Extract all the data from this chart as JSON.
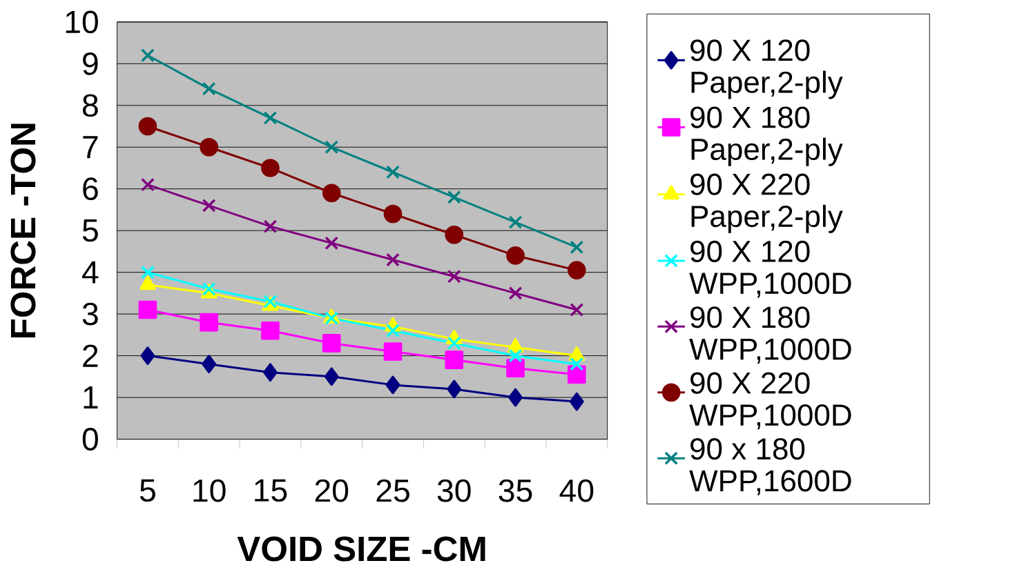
{
  "chart_data": {
    "type": "line",
    "xlabel": "VOID SIZE -CM",
    "ylabel": "FORCE -TON",
    "categories": [
      "5",
      "10",
      "15",
      "20",
      "25",
      "30",
      "35",
      "40"
    ],
    "ylim": [
      0,
      10
    ],
    "yticks": [
      0,
      1,
      2,
      3,
      4,
      5,
      6,
      7,
      8,
      9,
      10
    ],
    "grid": "y",
    "legend": "right",
    "series": [
      {
        "name": "90 X 120 Paper,2-ply",
        "color": "#000080",
        "marker": "diamond",
        "values": [
          2.0,
          1.8,
          1.6,
          1.5,
          1.3,
          1.2,
          1.0,
          0.9
        ]
      },
      {
        "name": "90 X 180 Paper,2-ply",
        "color": "#ff00ff",
        "marker": "square",
        "values": [
          3.1,
          2.8,
          2.6,
          2.3,
          2.1,
          1.9,
          1.7,
          1.55
        ]
      },
      {
        "name": "90 X 220 Paper,2-ply",
        "color": "#ffff00",
        "marker": "triangle",
        "values": [
          3.7,
          3.5,
          3.2,
          2.9,
          2.7,
          2.4,
          2.2,
          2.0
        ]
      },
      {
        "name": "90 X 120 WPP,1000D",
        "color": "#00ffff",
        "marker": "cross",
        "values": [
          4.0,
          3.6,
          3.3,
          2.9,
          2.6,
          2.3,
          2.0,
          1.8
        ]
      },
      {
        "name": "90 X 180 WPP,1000D",
        "color": "#800080",
        "marker": "cross",
        "values": [
          6.1,
          5.6,
          5.1,
          4.7,
          4.3,
          3.9,
          3.5,
          3.1
        ]
      },
      {
        "name": "90 X 220 WPP,1000D",
        "color": "#800000",
        "marker": "circle",
        "values": [
          7.5,
          7.0,
          6.5,
          5.9,
          5.4,
          4.9,
          4.4,
          4.05
        ]
      },
      {
        "name": "90 x 180 WPP,1600D",
        "color": "#008080",
        "marker": "cross",
        "values": [
          9.2,
          8.4,
          7.7,
          7.0,
          6.4,
          5.8,
          5.2,
          4.6
        ]
      }
    ]
  }
}
